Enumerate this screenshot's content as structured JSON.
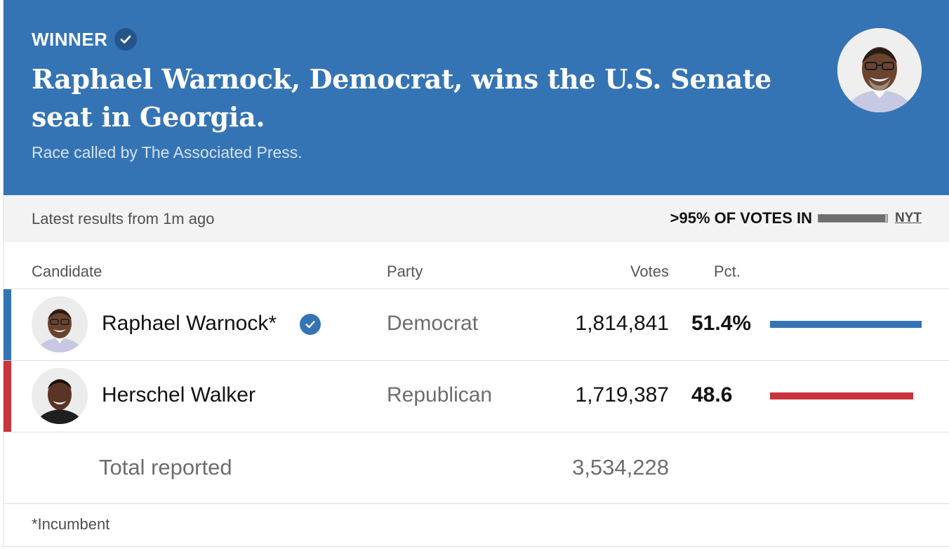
{
  "header": {
    "winner_label": "WINNER",
    "headline": "Raphael Warnock, Democrat, wins the U.S. Senate seat in Georgia.",
    "called_by": "Race called by The Associated Press."
  },
  "status": {
    "latest": "Latest results from 1m ago",
    "votes_in": ">95% OF VOTES IN",
    "votes_in_fraction": 0.97,
    "source_link": "NYT"
  },
  "table": {
    "columns": {
      "candidate": "Candidate",
      "party": "Party",
      "votes": "Votes",
      "pct": "Pct."
    },
    "rows": [
      {
        "name": "Raphael Warnock*",
        "party": "Democrat",
        "votes": "1,814,841",
        "pct": "51.4%",
        "pct_value": 51.4,
        "party_color": "#3574b4",
        "winner": true
      },
      {
        "name": "Herschel Walker",
        "party": "Republican",
        "votes": "1,719,387",
        "pct": "48.6",
        "pct_value": 48.6,
        "party_color": "#c8353c",
        "winner": false
      }
    ],
    "total_label": "Total reported",
    "total_votes": "3,534,228"
  },
  "footnote": "*Incumbent",
  "colors": {
    "header_bg": "#3574b4",
    "dem": "#3574b4",
    "rep": "#c8353c"
  }
}
